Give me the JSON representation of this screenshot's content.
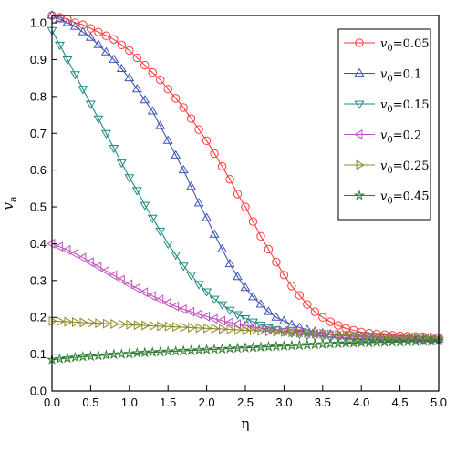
{
  "chart_data": {
    "type": "line",
    "xlabel": "η",
    "ylabel": "v_a",
    "xlim": [
      0,
      5
    ],
    "ylim": [
      0,
      1.02
    ],
    "x_ticks": [
      "0.0",
      "0.5",
      "1.0",
      "1.5",
      "2.0",
      "2.5",
      "3.0",
      "3.5",
      "4.0",
      "4.5",
      "5.0"
    ],
    "y_ticks": [
      "0.0",
      "0.1",
      "0.2",
      "0.3",
      "0.4",
      "0.5",
      "0.6",
      "0.7",
      "0.8",
      "0.9",
      "1.0"
    ],
    "grid": false,
    "legend_position": "top-right",
    "x": [
      0.0,
      0.1,
      0.2,
      0.3,
      0.4,
      0.5,
      0.6,
      0.7,
      0.8,
      0.9,
      1.0,
      1.1,
      1.2,
      1.3,
      1.4,
      1.5,
      1.6,
      1.7,
      1.8,
      1.9,
      2.0,
      2.1,
      2.2,
      2.3,
      2.4,
      2.5,
      2.6,
      2.7,
      2.8,
      2.9,
      3.0,
      3.1,
      3.2,
      3.3,
      3.4,
      3.5,
      3.6,
      3.7,
      3.8,
      3.9,
      4.0,
      4.1,
      4.2,
      4.3,
      4.4,
      4.5,
      4.6,
      4.7,
      4.8,
      4.9,
      5.0
    ],
    "series": [
      {
        "name_base": "v",
        "name_sub": "0",
        "name_val": "=0.05",
        "color": "#ff3b3b",
        "marker": "circle",
        "values": [
          1.02,
          1.015,
          1.01,
          1.0,
          0.995,
          0.985,
          0.975,
          0.965,
          0.955,
          0.94,
          0.925,
          0.905,
          0.885,
          0.865,
          0.845,
          0.82,
          0.795,
          0.77,
          0.74,
          0.71,
          0.68,
          0.645,
          0.61,
          0.575,
          0.535,
          0.5,
          0.46,
          0.42,
          0.385,
          0.35,
          0.315,
          0.285,
          0.26,
          0.235,
          0.215,
          0.2,
          0.188,
          0.178,
          0.17,
          0.165,
          0.16,
          0.157,
          0.155,
          0.153,
          0.151,
          0.15,
          0.149,
          0.148,
          0.147,
          0.146,
          0.145
        ]
      },
      {
        "name_base": "v",
        "name_sub": "0",
        "name_val": "=0.1",
        "color": "#3f55b5",
        "marker": "triangle-up",
        "values": [
          1.02,
          1.01,
          1.0,
          0.99,
          0.975,
          0.96,
          0.94,
          0.92,
          0.9,
          0.875,
          0.85,
          0.82,
          0.79,
          0.76,
          0.72,
          0.68,
          0.64,
          0.6,
          0.555,
          0.51,
          0.47,
          0.425,
          0.385,
          0.345,
          0.31,
          0.28,
          0.255,
          0.235,
          0.215,
          0.2,
          0.19,
          0.18,
          0.172,
          0.166,
          0.161,
          0.157,
          0.154,
          0.152,
          0.15,
          0.148,
          0.147,
          0.146,
          0.145,
          0.144,
          0.143,
          0.143,
          0.142,
          0.142,
          0.141,
          0.141,
          0.14
        ]
      },
      {
        "name_base": "v",
        "name_sub": "0",
        "name_val": "=0.15",
        "color": "#1f8a84",
        "marker": "triangle-down",
        "values": [
          0.98,
          0.94,
          0.9,
          0.86,
          0.82,
          0.78,
          0.74,
          0.7,
          0.66,
          0.62,
          0.58,
          0.545,
          0.505,
          0.47,
          0.435,
          0.4,
          0.37,
          0.34,
          0.315,
          0.29,
          0.27,
          0.25,
          0.235,
          0.22,
          0.208,
          0.197,
          0.188,
          0.18,
          0.173,
          0.167,
          0.162,
          0.158,
          0.155,
          0.152,
          0.15,
          0.148,
          0.146,
          0.145,
          0.144,
          0.143,
          0.142,
          0.141,
          0.141,
          0.14,
          0.14,
          0.139,
          0.139,
          0.139,
          0.138,
          0.138,
          0.138
        ]
      },
      {
        "name_base": "v",
        "name_sub": "0",
        "name_val": "=0.2",
        "color": "#c050c0",
        "marker": "triangle-left",
        "values": [
          0.4,
          0.392,
          0.383,
          0.373,
          0.362,
          0.35,
          0.338,
          0.326,
          0.314,
          0.302,
          0.29,
          0.279,
          0.268,
          0.258,
          0.248,
          0.239,
          0.23,
          0.222,
          0.215,
          0.208,
          0.202,
          0.196,
          0.191,
          0.186,
          0.182,
          0.178,
          0.174,
          0.171,
          0.168,
          0.165,
          0.163,
          0.161,
          0.159,
          0.157,
          0.155,
          0.153,
          0.152,
          0.15,
          0.149,
          0.148,
          0.147,
          0.146,
          0.145,
          0.144,
          0.143,
          0.143,
          0.142,
          0.141,
          0.141,
          0.14,
          0.14
        ]
      },
      {
        "name_base": "v",
        "name_sub": "0",
        "name_val": "=0.25",
        "color": "#8a8a28",
        "marker": "triangle-right",
        "values": [
          0.19,
          0.189,
          0.188,
          0.187,
          0.186,
          0.185,
          0.184,
          0.183,
          0.182,
          0.181,
          0.18,
          0.179,
          0.178,
          0.177,
          0.176,
          0.175,
          0.174,
          0.173,
          0.172,
          0.171,
          0.17,
          0.169,
          0.168,
          0.167,
          0.166,
          0.165,
          0.164,
          0.163,
          0.162,
          0.161,
          0.16,
          0.159,
          0.158,
          0.157,
          0.156,
          0.155,
          0.154,
          0.153,
          0.152,
          0.151,
          0.15,
          0.149,
          0.148,
          0.147,
          0.147,
          0.146,
          0.146,
          0.145,
          0.145,
          0.144,
          0.144
        ]
      },
      {
        "name_base": "v",
        "name_sub": "0",
        "name_val": "=0.45",
        "color": "#2e7d32",
        "marker": "star",
        "values": [
          0.085,
          0.087,
          0.089,
          0.091,
          0.093,
          0.094,
          0.096,
          0.097,
          0.099,
          0.1,
          0.101,
          0.103,
          0.104,
          0.105,
          0.106,
          0.107,
          0.108,
          0.109,
          0.11,
          0.111,
          0.112,
          0.113,
          0.114,
          0.115,
          0.116,
          0.117,
          0.118,
          0.119,
          0.12,
          0.121,
          0.122,
          0.123,
          0.124,
          0.125,
          0.126,
          0.127,
          0.128,
          0.129,
          0.13,
          0.13,
          0.131,
          0.131,
          0.132,
          0.132,
          0.133,
          0.133,
          0.134,
          0.134,
          0.135,
          0.135,
          0.136
        ]
      }
    ]
  }
}
